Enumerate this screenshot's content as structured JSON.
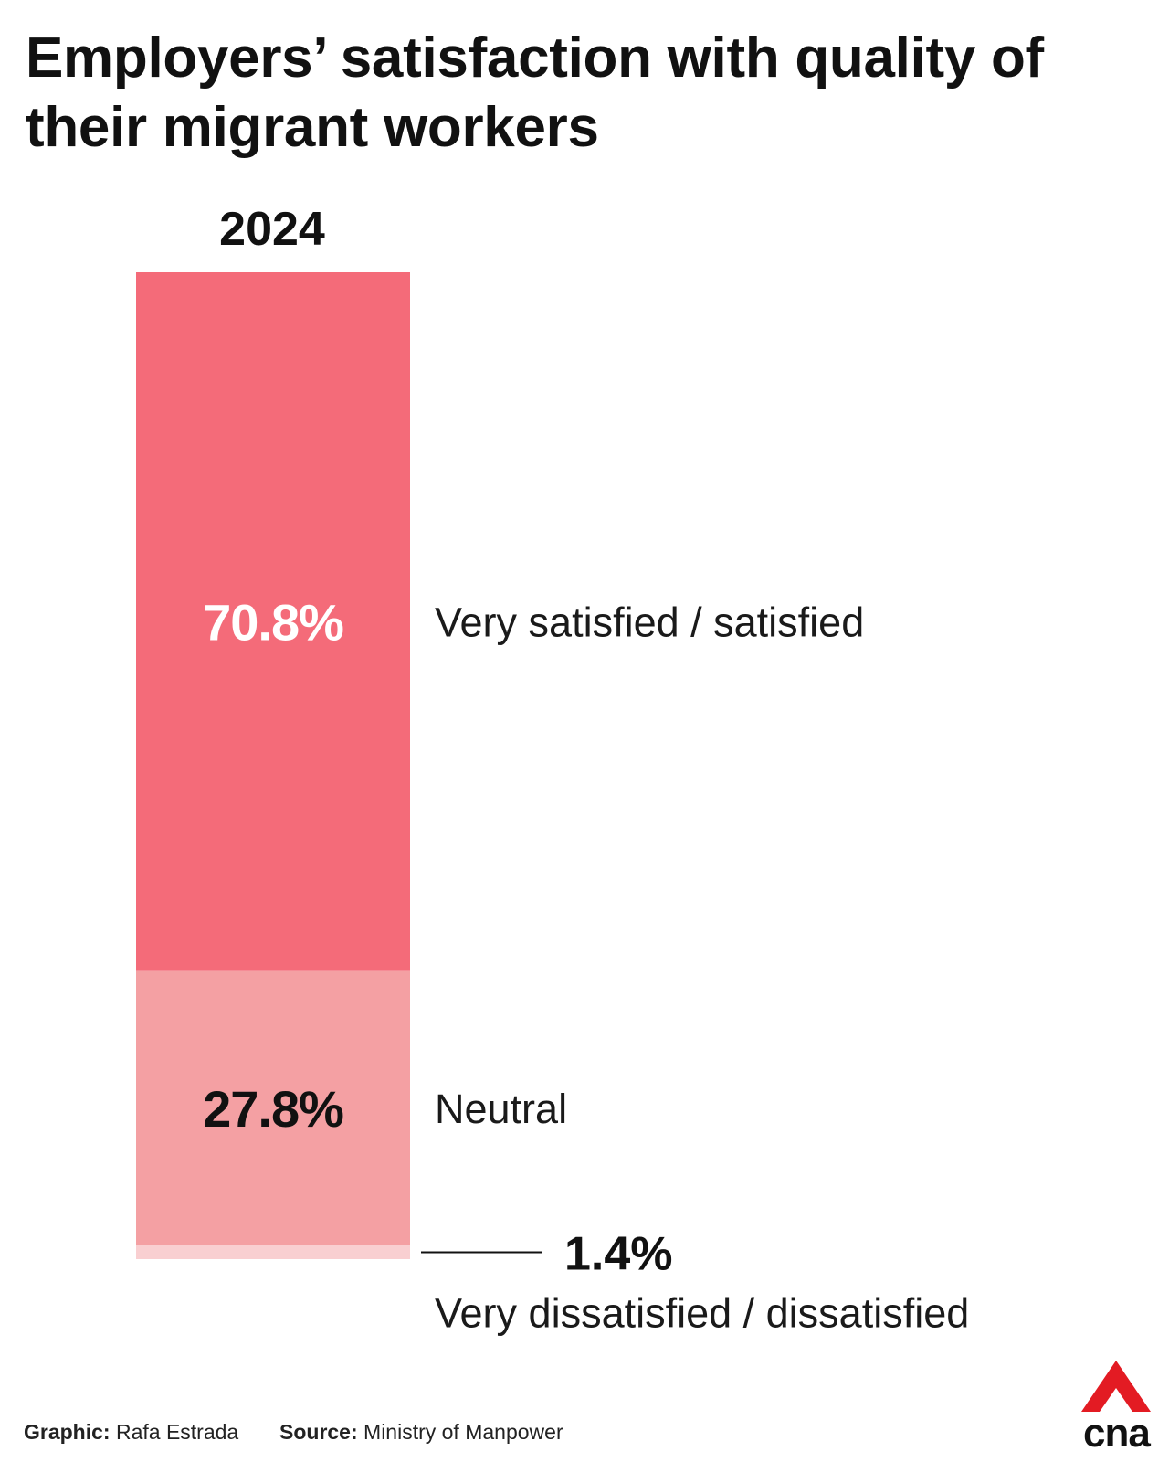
{
  "title": "Employers’ satisfaction with quality of their migrant workers",
  "chart_data": {
    "type": "bar",
    "stacked": true,
    "unit": "%",
    "categories": [
      "2024"
    ],
    "series": [
      {
        "name": "Very satisfied / satisfied",
        "value": 70.8,
        "label": "70.8%",
        "color": "#f46b79",
        "label_color": "#ffffff"
      },
      {
        "name": "Neutral",
        "value": 27.8,
        "label": "27.8%",
        "color": "#f4a0a3",
        "label_color": "#111111"
      },
      {
        "name": "Very dissatisfied / dissatisfied",
        "value": 1.4,
        "label": "1.4%",
        "color": "#f9cfd1",
        "label_color": "#111111"
      }
    ]
  },
  "footer": {
    "graphic_key": "Graphic:",
    "graphic_value": "Rafa Estrada",
    "source_key": "Source:",
    "source_value": "Ministry of Manpower"
  },
  "logo": {
    "text": "cna",
    "color": "#e31b23"
  }
}
